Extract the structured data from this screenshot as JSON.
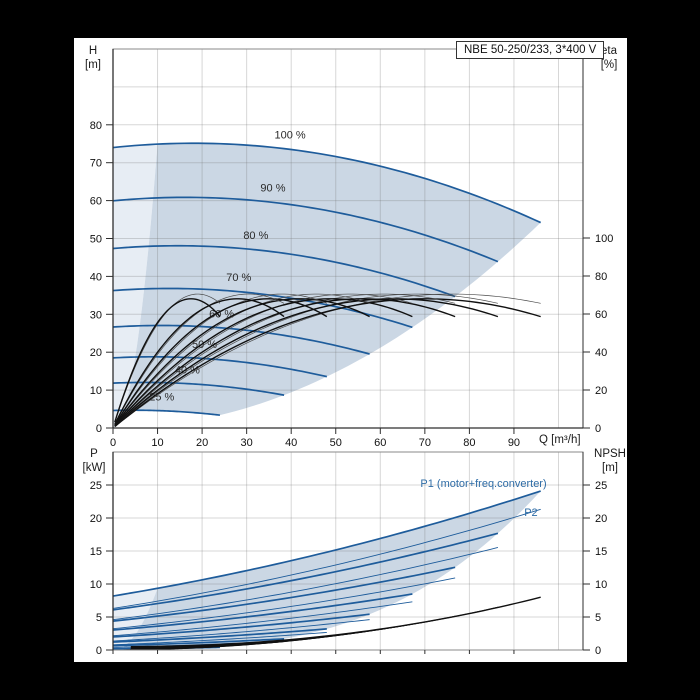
{
  "window": {
    "background": "#000000"
  },
  "title_box": {
    "text": "NBE 50-250/233, 3*400 V"
  },
  "axes": {
    "left_top": {
      "name": "H",
      "unit": "[m]",
      "ticks": [
        0,
        10,
        20,
        30,
        40,
        50,
        60,
        70,
        80
      ]
    },
    "right_top": {
      "name": "eta",
      "unit": "[%]",
      "ticks": [
        0,
        20,
        40,
        60,
        80,
        100
      ]
    },
    "bottom_x": {
      "name": "Q [m³/h]",
      "ticks": [
        0,
        10,
        20,
        30,
        40,
        50,
        60,
        70,
        80,
        90
      ]
    },
    "left_bottom": {
      "name": "P",
      "unit": "[kW]",
      "ticks": [
        0,
        5,
        10,
        15,
        20,
        25
      ]
    },
    "right_bottom": {
      "name": "NPSH",
      "unit": "[m]",
      "ticks": [
        0,
        5,
        10,
        15,
        20,
        25
      ]
    }
  },
  "chart_data": [
    {
      "id": "head-capacity",
      "type": "line",
      "title": "NBE 50-250/233, 3*400 V",
      "xlabel": "Q [m³/h]",
      "ylabel": "H [m]",
      "y2label": "eta [%]",
      "xlim": [
        0,
        105.5
      ],
      "ylim": [
        0,
        100
      ],
      "y2_ticks": [
        0,
        20,
        40,
        60,
        80,
        100
      ],
      "grid": true,
      "series": [
        {
          "label": "100 %",
          "speed_pct": 100,
          "shutoff_head_m": 74.0,
          "q_end_m3h": 96.0,
          "h_end_m": 54.2
        },
        {
          "label": "90 %",
          "speed_pct": 90,
          "shutoff_head_m": 59.9,
          "q_end_m3h": 86.4,
          "h_end_m": 43.9
        },
        {
          "label": "80 %",
          "speed_pct": 80,
          "shutoff_head_m": 47.4,
          "q_end_m3h": 76.8,
          "h_end_m": 34.7
        },
        {
          "label": "70 %",
          "speed_pct": 70,
          "shutoff_head_m": 36.3,
          "q_end_m3h": 67.2,
          "h_end_m": 26.5
        },
        {
          "label": "60 %",
          "speed_pct": 60,
          "shutoff_head_m": 26.6,
          "q_end_m3h": 57.6,
          "h_end_m": 19.5
        },
        {
          "label": "50 %",
          "speed_pct": 50,
          "shutoff_head_m": 18.5,
          "q_end_m3h": 48.0,
          "h_end_m": 13.5
        },
        {
          "label": "40 %",
          "speed_pct": 40,
          "shutoff_head_m": 11.8,
          "q_end_m3h": 38.4,
          "h_end_m": 8.7
        },
        {
          "label": "25 %",
          "speed_pct": 25,
          "shutoff_head_m": 4.6,
          "q_end_m3h": 24.0,
          "h_end_m": 3.4
        }
      ],
      "h_model": {
        "h0": 74,
        "a": 0.125,
        "b": 0.00345,
        "qmax_full_speed": 96
      },
      "min_flow_q_full_speed": 10,
      "eta_curves": {
        "pump": {
          "eta_max": 70.5,
          "q_bep": 76,
          "eta_at_qmax": 65.6
        },
        "total": {
          "eta_max": 68.0,
          "q_bep": 70,
          "eta_at_qmax": 58.6
        }
      }
    },
    {
      "id": "power-npsh",
      "type": "line",
      "xlabel": "Q [m³/h]",
      "ylabel": "P [kW]",
      "y2label": "NPSH [m]",
      "xlim": [
        0,
        105.5
      ],
      "ylim": [
        0,
        30
      ],
      "grid": true,
      "series": [
        {
          "label": "P1 (motor+freq.converter)",
          "kind": "P1",
          "p_at_q0_kw": 8.2,
          "p_end_kw": 24.1,
          "q_end_m3h": 96
        },
        {
          "label": "P2",
          "kind": "P2",
          "p_at_q0_kw": 6.3,
          "p_end_kw": 21.3,
          "q_end_m3h": 96
        }
      ],
      "speeds_pct": [
        100,
        90,
        80,
        70,
        60,
        50,
        40,
        25
      ],
      "p2_model": {
        "p0": 6.3,
        "lin": 0.105,
        "quad": 0.000535
      },
      "p1_model": {
        "factor": 1.06,
        "offset_s2": 1.5
      },
      "npsh_model": {
        "n0": 0.5,
        "amp": 7.5,
        "exp": 2.2,
        "npsh_end_full_speed": 8.0
      }
    }
  ],
  "colors": {
    "curve_blue": "#1e5c9b",
    "label_blue": "#2e6ca6",
    "fill_dark": "#cbd7e4",
    "fill_light": "#e7edf4",
    "grid": "rgba(110,110,110,0.28)",
    "frame": "#8a8a8a",
    "axis_dark": "#2e2e2e",
    "eta_thin": "#4a4a4a",
    "eta_thick": "#101010",
    "npsh_black": "#111111",
    "tick_text": "#111111",
    "speed_label_text": "#2a2a2a"
  }
}
